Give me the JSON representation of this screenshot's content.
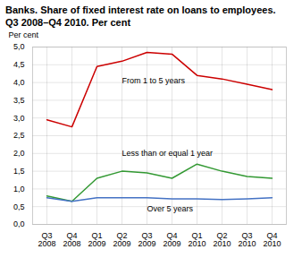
{
  "chart_data": {
    "type": "line",
    "title": "Banks. Share of fixed interest rate on loans to employees.",
    "subtitle": "Q3 2008–Q4 2010. Per cent",
    "ylabel": "Per cent",
    "categories": [
      "Q3\n2008",
      "Q4\n2008",
      "Q1\n2009",
      "Q2\n2009",
      "Q3\n2009",
      "Q4\n2009",
      "Q1\n2010",
      "Q2\n2010",
      "Q3\n2010",
      "Q4\n2010"
    ],
    "series": [
      {
        "name": "From 1 to 5 years",
        "color": "#cc0000",
        "values": [
          2.95,
          2.75,
          4.45,
          4.6,
          4.85,
          4.8,
          4.2,
          4.1,
          3.95,
          3.8
        ]
      },
      {
        "name": "Less than or equal 1 year",
        "color": "#339933",
        "values": [
          0.8,
          0.65,
          1.3,
          1.5,
          1.45,
          1.3,
          1.7,
          1.5,
          1.35,
          1.3
        ]
      },
      {
        "name": "Over 5 years",
        "color": "#4472c4",
        "values": [
          0.75,
          0.65,
          0.75,
          0.75,
          0.75,
          0.72,
          0.72,
          0.7,
          0.72,
          0.75
        ]
      }
    ],
    "ylim": [
      0,
      5.0
    ],
    "yticks": [
      {
        "value": 0.0,
        "label": "0,0"
      },
      {
        "value": 0.5,
        "label": "0,5"
      },
      {
        "value": 1.0,
        "label": "1,0"
      },
      {
        "value": 1.5,
        "label": "1,5"
      },
      {
        "value": 2.0,
        "label": "2,0"
      },
      {
        "value": 2.5,
        "label": "2,5"
      },
      {
        "value": 3.0,
        "label": "3,0"
      },
      {
        "value": 3.5,
        "label": "3,5"
      },
      {
        "value": 4.0,
        "label": "4,0"
      },
      {
        "value": 4.5,
        "label": "4,5"
      },
      {
        "value": 5.0,
        "label": "5,0"
      }
    ],
    "grid": true
  }
}
